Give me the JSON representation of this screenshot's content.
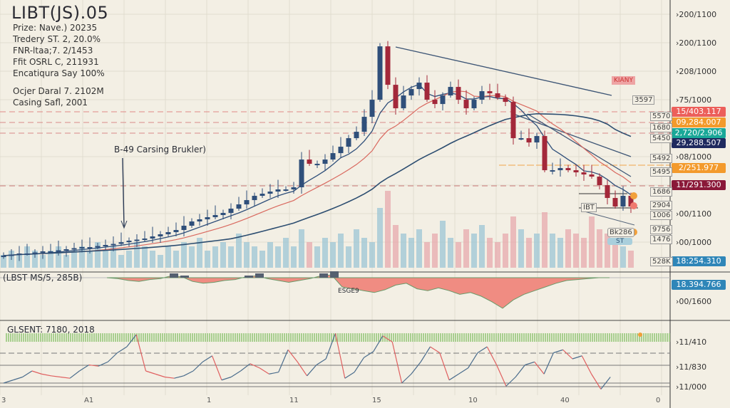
{
  "header": {
    "title": "LIBT(JS).05",
    "lines": [
      "Prize: Nave.) 20235",
      "Tredery ST. 2, 20.0%",
      "FNR-ltaa;7. 2/1453",
      "Ffit OSRL C, 211931",
      "Encatiqura Say 100%"
    ],
    "lines2": [
      "Ocjer Daral 7. 2102M",
      "Casing Safl, 2001"
    ]
  },
  "annotations": {
    "callout": "B-49 Carsing Brukler)",
    "tag": "KIANY",
    "ibt": "IBT",
    "bk": "Bk286",
    "st": "ST",
    "esg": "ESGE9"
  },
  "right_axis": {
    "ticks": [
      "200/1100",
      "200/1100",
      "208/1000",
      "75/1000",
      "08/1000",
      "00/1100",
      "00/1000",
      "00/1600",
      "11/410",
      "11/830",
      "11/000"
    ],
    "badges": [
      {
        "v": "15/403.117",
        "c": "#ec5f5a"
      },
      {
        "v": "09,284.007",
        "c": "#f39a2c"
      },
      {
        "v": "2,720/2.906",
        "c": "#1aa898"
      },
      {
        "v": "29,288.507",
        "c": "#1f2a5e"
      },
      {
        "v": "2/251.977",
        "c": "#f39a2c"
      },
      {
        "v": "11/291.300",
        "c": "#8a1838"
      },
      {
        "v": "18:254.310",
        "c": "#2f86b8"
      },
      {
        "v": "18.394.766",
        "c": "#2f86b8"
      }
    ],
    "small": [
      "3597",
      "5570",
      "1680",
      "5450",
      "5492",
      "5495",
      "1686",
      "2904",
      "1006",
      "9756",
      "1476",
      "528K"
    ]
  },
  "indicators": {
    "macd_label": "(LBST MS/5, 285B)",
    "sent_label": "GLSENT: 7180, 2018"
  },
  "x_axis": [
    "3",
    "A1",
    "1",
    "11",
    "15",
    "10",
    "40",
    "0"
  ],
  "colors": {
    "up": "#2f4f7a",
    "down": "#a3283a",
    "ma_fast": "#2f4f7a",
    "ma_mid": "#d9685e",
    "ma_slow": "#2c4d70",
    "vol_up": "#9cc6d6",
    "vol_down": "#e7a9ad",
    "hist": "#f08c82"
  },
  "chart_data": {
    "type": "candlestick",
    "ylim": [
      0,
      126.7
    ],
    "closes": [
      7,
      7.5,
      8,
      8,
      8.5,
      9,
      9,
      9.5,
      10,
      10.5,
      11,
      11,
      11.5,
      12,
      12.5,
      13.3,
      14,
      14.5,
      15,
      16,
      17,
      18,
      19,
      21,
      23,
      24,
      25,
      26,
      27,
      29,
      31,
      33,
      35,
      36,
      37,
      38,
      38,
      39,
      52,
      50,
      50,
      52,
      55,
      58,
      62,
      65,
      72,
      80,
      105,
      87,
      76,
      82,
      85,
      88,
      80,
      78,
      82,
      86,
      80,
      76,
      80,
      84,
      83,
      81,
      79,
      62,
      62,
      60,
      63,
      47,
      47,
      48,
      47,
      46,
      45,
      44,
      40,
      34,
      30,
      35,
      30
    ],
    "volumes": [
      3,
      4,
      3,
      5,
      4,
      3,
      4,
      5,
      3,
      4,
      5,
      4,
      6,
      4,
      5,
      3,
      4,
      6,
      5,
      4,
      3,
      5,
      4,
      6,
      5,
      7,
      4,
      5,
      6,
      5,
      8,
      6,
      5,
      4,
      6,
      5,
      7,
      5,
      9,
      6,
      5,
      7,
      6,
      8,
      5,
      9,
      7,
      6,
      14,
      18,
      10,
      8,
      7,
      9,
      6,
      8,
      11,
      7,
      6,
      9,
      8,
      10,
      7,
      6,
      8,
      12,
      9,
      7,
      8,
      13,
      8,
      7,
      9,
      8,
      7,
      12,
      9,
      8,
      6,
      5,
      4
    ],
    "macd": [
      0,
      -1,
      -3,
      -4,
      -2,
      -1,
      2,
      1,
      -4,
      -6,
      -5,
      -3,
      -2,
      1,
      2,
      -1,
      -3,
      -5,
      -3,
      -1,
      2,
      3,
      -10,
      -12,
      -14,
      -16,
      -13,
      -8,
      -6,
      -12,
      -14,
      -11,
      -14,
      -18,
      -16,
      -20,
      -26,
      -33,
      -24,
      -18,
      -14,
      -10,
      -6,
      -3,
      -2,
      -1,
      0,
      0
    ],
    "osc": [
      20,
      25,
      30,
      40,
      35,
      32,
      30,
      28,
      40,
      50,
      48,
      55,
      70,
      80,
      100,
      40,
      35,
      30,
      28,
      32,
      40,
      55,
      65,
      25,
      30,
      40,
      52,
      45,
      35,
      38,
      75,
      55,
      32,
      50,
      60,
      102,
      28,
      38,
      62,
      72,
      98,
      88,
      20,
      35,
      55,
      80,
      70,
      25,
      35,
      45,
      70,
      80,
      50,
      15,
      30,
      50,
      55,
      35,
      70,
      75,
      60,
      65,
      35,
      10,
      30
    ]
  }
}
